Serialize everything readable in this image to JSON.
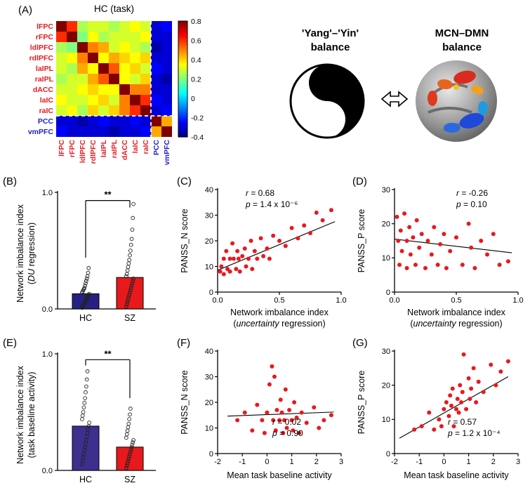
{
  "panels": {
    "A": "(A)",
    "B": "(B)",
    "C": "(C)",
    "D": "(D)",
    "E": "(E)",
    "F": "(F)",
    "G": "(G)"
  },
  "illustration": {
    "yang_yin_line1": "'Yang'–'Yin'",
    "yang_yin_line2": "balance",
    "mcn_dmn_line1": "MCN–DMN",
    "mcn_dmn_line2": "balance"
  },
  "chart_data": [
    {
      "id": "A",
      "type": "heatmap",
      "title": "HC (task)",
      "labels": [
        "lFPC",
        "rFPC",
        "ldlPFC",
        "rdlPFC",
        "laIPL",
        "raIPL",
        "dACC",
        "laIC",
        "raIC",
        "PCC",
        "vmPFC"
      ],
      "mcn_count": 9,
      "mcn_label_color": "#e8191c",
      "dmn_label_color": "#2020cc",
      "vmin": -0.4,
      "vmax": 0.8,
      "colormap": "jet",
      "colorbar_tick_values": [
        0.8,
        0.6,
        0.4,
        0.2,
        0,
        -0.2,
        -0.4
      ],
      "colorbar_tick_labels": [
        "0.8",
        "0.6",
        "0.4",
        "0.2",
        "0",
        "-0.2",
        "-0.4"
      ],
      "matrix": [
        [
          0.8,
          0.6,
          0.25,
          0.3,
          0.3,
          0.25,
          0.3,
          0.35,
          0.3,
          -0.3,
          -0.25
        ],
        [
          0.6,
          0.8,
          0.2,
          0.35,
          0.25,
          0.3,
          0.3,
          0.3,
          0.35,
          -0.3,
          -0.3
        ],
        [
          0.25,
          0.2,
          0.8,
          0.5,
          0.45,
          0.3,
          0.35,
          0.3,
          0.25,
          -0.35,
          -0.3
        ],
        [
          0.3,
          0.35,
          0.5,
          0.8,
          0.35,
          0.45,
          0.4,
          0.35,
          0.4,
          -0.3,
          -0.3
        ],
        [
          0.3,
          0.25,
          0.45,
          0.35,
          0.8,
          0.55,
          0.35,
          0.4,
          0.3,
          -0.25,
          -0.3
        ],
        [
          0.25,
          0.3,
          0.3,
          0.45,
          0.55,
          0.8,
          0.35,
          0.3,
          0.4,
          -0.3,
          -0.35
        ],
        [
          0.3,
          0.3,
          0.35,
          0.4,
          0.35,
          0.35,
          0.8,
          0.5,
          0.5,
          -0.3,
          -0.3
        ],
        [
          0.35,
          0.3,
          0.3,
          0.35,
          0.4,
          0.3,
          0.5,
          0.8,
          0.6,
          -0.25,
          -0.3
        ],
        [
          0.3,
          0.35,
          0.25,
          0.4,
          0.3,
          0.4,
          0.5,
          0.6,
          0.8,
          -0.3,
          -0.25
        ],
        [
          -0.3,
          -0.3,
          -0.35,
          -0.3,
          -0.25,
          -0.3,
          -0.3,
          -0.25,
          -0.3,
          0.8,
          0.45
        ],
        [
          -0.25,
          -0.3,
          -0.3,
          -0.3,
          -0.3,
          -0.35,
          -0.3,
          -0.3,
          -0.25,
          0.45,
          0.8
        ]
      ]
    },
    {
      "id": "B",
      "type": "bar",
      "categories": [
        "HC",
        "SZ"
      ],
      "values": [
        0.13,
        0.27
      ],
      "bar_colors": [
        "#262082",
        "#e8191c"
      ],
      "ylim": [
        0,
        1
      ],
      "ytick_values": [
        0,
        1
      ],
      "ytick_labels": [
        "0.0",
        "1.0"
      ],
      "significance": "**",
      "ylabel_line1": "Network imbalance index",
      "ylabel_line2": {
        "pre": "(",
        "it": "DU",
        "post": " regression)"
      },
      "points": [
        [
          0.01,
          0.02,
          0.03,
          0.04,
          0.05,
          0.06,
          0.07,
          0.08,
          0.09,
          0.1,
          0.11,
          0.12,
          0.13,
          0.14,
          0.15,
          0.16,
          0.17,
          0.18,
          0.2,
          0.22,
          0.24,
          0.26,
          0.28,
          0.31,
          0.35
        ],
        [
          0.02,
          0.04,
          0.06,
          0.08,
          0.1,
          0.12,
          0.14,
          0.16,
          0.18,
          0.2,
          0.22,
          0.24,
          0.26,
          0.28,
          0.3,
          0.33,
          0.36,
          0.39,
          0.42,
          0.46,
          0.5,
          0.55,
          0.6,
          0.68,
          0.78,
          0.9
        ]
      ]
    },
    {
      "id": "C",
      "type": "scatter",
      "xlim": [
        0,
        1
      ],
      "ylim": [
        0,
        40
      ],
      "xtick_values": [
        0,
        0.5,
        1
      ],
      "xtick_labels": [
        "0.0",
        "0.5",
        "1.0"
      ],
      "ytick_values": [
        0,
        10,
        20,
        30,
        40
      ],
      "ytick_labels": [
        "0",
        "10",
        "20",
        "30",
        "40"
      ],
      "point_color": "#e8191c",
      "ylabel": "PANSS_N score",
      "xlabel_line1": "Network imbalance index",
      "xlabel_line2": {
        "pre": "(",
        "it": "uncertainty",
        "post": " regression)"
      },
      "annotation": {
        "r_var": "r",
        "r_rest": " = 0.68",
        "p_var": "p",
        "p_rest": " = 1.4 x 10⁻⁶"
      },
      "fit_line": {
        "x1": 0,
        "y1": 8.5,
        "x2": 0.95,
        "y2": 27.5
      },
      "points": [
        [
          0.02,
          8
        ],
        [
          0.03,
          10
        ],
        [
          0.05,
          13
        ],
        [
          0.05,
          7
        ],
        [
          0.07,
          16
        ],
        [
          0.08,
          9
        ],
        [
          0.1,
          13
        ],
        [
          0.1,
          8
        ],
        [
          0.12,
          19
        ],
        [
          0.13,
          13
        ],
        [
          0.15,
          9
        ],
        [
          0.16,
          16
        ],
        [
          0.17,
          13
        ],
        [
          0.18,
          8
        ],
        [
          0.2,
          14
        ],
        [
          0.22,
          17
        ],
        [
          0.23,
          10
        ],
        [
          0.25,
          13
        ],
        [
          0.27,
          20
        ],
        [
          0.28,
          9
        ],
        [
          0.3,
          16
        ],
        [
          0.32,
          13
        ],
        [
          0.35,
          21
        ],
        [
          0.37,
          14
        ],
        [
          0.4,
          17
        ],
        [
          0.42,
          13
        ],
        [
          0.45,
          22
        ],
        [
          0.5,
          20
        ],
        [
          0.55,
          18
        ],
        [
          0.6,
          25
        ],
        [
          0.65,
          21
        ],
        [
          0.7,
          26
        ],
        [
          0.75,
          23
        ],
        [
          0.8,
          31
        ],
        [
          0.85,
          28
        ],
        [
          0.92,
          32
        ]
      ]
    },
    {
      "id": "D",
      "type": "scatter",
      "xlim": [
        0,
        1
      ],
      "ylim": [
        0,
        30
      ],
      "xtick_values": [
        0,
        0.5,
        1
      ],
      "xtick_labels": [
        "0.0",
        "0.5",
        "1.0"
      ],
      "ytick_values": [
        0,
        10,
        20,
        30
      ],
      "ytick_labels": [
        "0",
        "10",
        "20",
        "30"
      ],
      "point_color": "#e8191c",
      "ylabel": "PANSS_P score",
      "xlabel_line1": "Network imbalance index",
      "xlabel_line2": {
        "pre": "(",
        "it": "uncertainty",
        "post": " regression)"
      },
      "annotation": {
        "r_var": "r",
        "r_rest": " = -0.26",
        "p_var": "p",
        "p_rest": " = 0.10"
      },
      "fit_line": {
        "x1": 0,
        "y1": 15.5,
        "x2": 0.95,
        "y2": 11.5
      },
      "points": [
        [
          0.02,
          22
        ],
        [
          0.03,
          15
        ],
        [
          0.04,
          8
        ],
        [
          0.05,
          18
        ],
        [
          0.06,
          12
        ],
        [
          0.08,
          23
        ],
        [
          0.1,
          15
        ],
        [
          0.1,
          7
        ],
        [
          0.12,
          19
        ],
        [
          0.13,
          11
        ],
        [
          0.15,
          16
        ],
        [
          0.17,
          8
        ],
        [
          0.18,
          21
        ],
        [
          0.2,
          13
        ],
        [
          0.22,
          17
        ],
        [
          0.25,
          7
        ],
        [
          0.27,
          15
        ],
        [
          0.3,
          11
        ],
        [
          0.32,
          19
        ],
        [
          0.35,
          8
        ],
        [
          0.37,
          14
        ],
        [
          0.4,
          17
        ],
        [
          0.42,
          7
        ],
        [
          0.45,
          12
        ],
        [
          0.5,
          16
        ],
        [
          0.55,
          8
        ],
        [
          0.6,
          20
        ],
        [
          0.62,
          13
        ],
        [
          0.65,
          7
        ],
        [
          0.7,
          15
        ],
        [
          0.75,
          11
        ],
        [
          0.8,
          17
        ],
        [
          0.85,
          8
        ],
        [
          0.92,
          9
        ]
      ]
    },
    {
      "id": "E",
      "type": "bar",
      "categories": [
        "HC",
        "SZ"
      ],
      "values": [
        0.38,
        0.2
      ],
      "bar_colors": [
        "#3c2f8e",
        "#e8191c"
      ],
      "ylim": [
        0,
        1
      ],
      "ytick_values": [
        0,
        1
      ],
      "ytick_labels": [
        "0.0",
        "1.0"
      ],
      "significance": "**",
      "ylabel_line1": "Network imbalance index",
      "ylabel_line2": {
        "pre": "(task baseline activity)",
        "it": "",
        "post": ""
      },
      "points": [
        [
          0.05,
          0.08,
          0.11,
          0.14,
          0.17,
          0.2,
          0.23,
          0.26,
          0.29,
          0.32,
          0.35,
          0.38,
          0.41,
          0.44,
          0.47,
          0.5,
          0.54,
          0.58,
          0.62,
          0.67,
          0.72,
          0.78,
          0.85
        ],
        [
          0.02,
          0.04,
          0.06,
          0.08,
          0.1,
          0.12,
          0.14,
          0.16,
          0.18,
          0.2,
          0.22,
          0.24,
          0.26,
          0.28,
          0.31,
          0.34,
          0.37,
          0.4,
          0.44,
          0.48,
          0.53
        ]
      ]
    },
    {
      "id": "F",
      "type": "scatter",
      "xlim": [
        -2,
        3
      ],
      "ylim": [
        0,
        40
      ],
      "xtick_values": [
        -2,
        -1,
        0,
        1,
        2,
        3
      ],
      "xtick_labels": [
        "-2",
        "-1",
        "0",
        "1",
        "2",
        "3"
      ],
      "ytick_values": [
        0,
        10,
        20,
        30,
        40
      ],
      "ytick_labels": [
        "0",
        "10",
        "20",
        "30",
        "40"
      ],
      "point_color": "#e8191c",
      "ylabel": "PANSS_N score",
      "xlabel": "Mean task baseline activity",
      "annotation": {
        "r_var": "r",
        "r_rest": " = 0.02",
        "p_var": "p",
        "p_rest": " = 0.90"
      },
      "fit_line": {
        "x1": -1.6,
        "y1": 14.6,
        "x2": 2.7,
        "y2": 16.2
      },
      "points": [
        [
          -1.2,
          13
        ],
        [
          -0.9,
          16
        ],
        [
          -0.6,
          9
        ],
        [
          -0.4,
          19
        ],
        [
          -0.2,
          13
        ],
        [
          -0.1,
          8
        ],
        [
          0.0,
          16
        ],
        [
          0.1,
          27
        ],
        [
          0.2,
          34
        ],
        [
          0.25,
          13
        ],
        [
          0.3,
          30
        ],
        [
          0.35,
          9
        ],
        [
          0.4,
          17
        ],
        [
          0.5,
          13
        ],
        [
          0.55,
          21
        ],
        [
          0.6,
          16
        ],
        [
          0.65,
          8
        ],
        [
          0.7,
          13
        ],
        [
          0.75,
          25
        ],
        [
          0.8,
          10
        ],
        [
          0.9,
          17
        ],
        [
          1.0,
          13
        ],
        [
          1.05,
          9
        ],
        [
          1.1,
          20
        ],
        [
          1.2,
          14
        ],
        [
          1.3,
          8
        ],
        [
          1.4,
          16
        ],
        [
          1.6,
          12
        ],
        [
          1.9,
          18
        ],
        [
          2.1,
          10
        ],
        [
          2.3,
          13
        ],
        [
          2.6,
          15
        ]
      ]
    },
    {
      "id": "G",
      "type": "scatter",
      "xlim": [
        -2,
        3
      ],
      "ylim": [
        0,
        30
      ],
      "xtick_values": [
        -2,
        -1,
        0,
        1,
        2,
        3
      ],
      "xtick_labels": [
        "-2",
        "-1",
        "0",
        "1",
        "2",
        "3"
      ],
      "ytick_values": [
        0,
        10,
        20,
        30
      ],
      "ytick_labels": [
        "0",
        "10",
        "20",
        "30"
      ],
      "point_color": "#e8191c",
      "ylabel": "PANSS_P score",
      "xlabel": "Mean task baseline activity",
      "annotation": {
        "r_var": "r",
        "r_rest": " = 0.57",
        "p_var": "p",
        "p_rest": " = 1.2 x 10⁻⁴"
      },
      "fit_line": {
        "x1": -1.8,
        "y1": 4.5,
        "x2": 2.6,
        "y2": 22.5
      },
      "points": [
        [
          -1.2,
          7
        ],
        [
          -0.9,
          8
        ],
        [
          -0.6,
          12
        ],
        [
          -0.4,
          7
        ],
        [
          -0.2,
          10
        ],
        [
          -0.1,
          8
        ],
        [
          0.0,
          13
        ],
        [
          0.1,
          15
        ],
        [
          0.2,
          11
        ],
        [
          0.25,
          17
        ],
        [
          0.3,
          14
        ],
        [
          0.35,
          19
        ],
        [
          0.4,
          8
        ],
        [
          0.5,
          13
        ],
        [
          0.55,
          16
        ],
        [
          0.6,
          12
        ],
        [
          0.65,
          20
        ],
        [
          0.7,
          15
        ],
        [
          0.75,
          18
        ],
        [
          0.8,
          29
        ],
        [
          0.9,
          13
        ],
        [
          1.0,
          22
        ],
        [
          1.05,
          16
        ],
        [
          1.1,
          19
        ],
        [
          1.2,
          25
        ],
        [
          1.3,
          15
        ],
        [
          1.4,
          21
        ],
        [
          1.6,
          18
        ],
        [
          1.9,
          26
        ],
        [
          2.1,
          20
        ],
        [
          2.3,
          24
        ],
        [
          2.6,
          27
        ]
      ]
    }
  ]
}
